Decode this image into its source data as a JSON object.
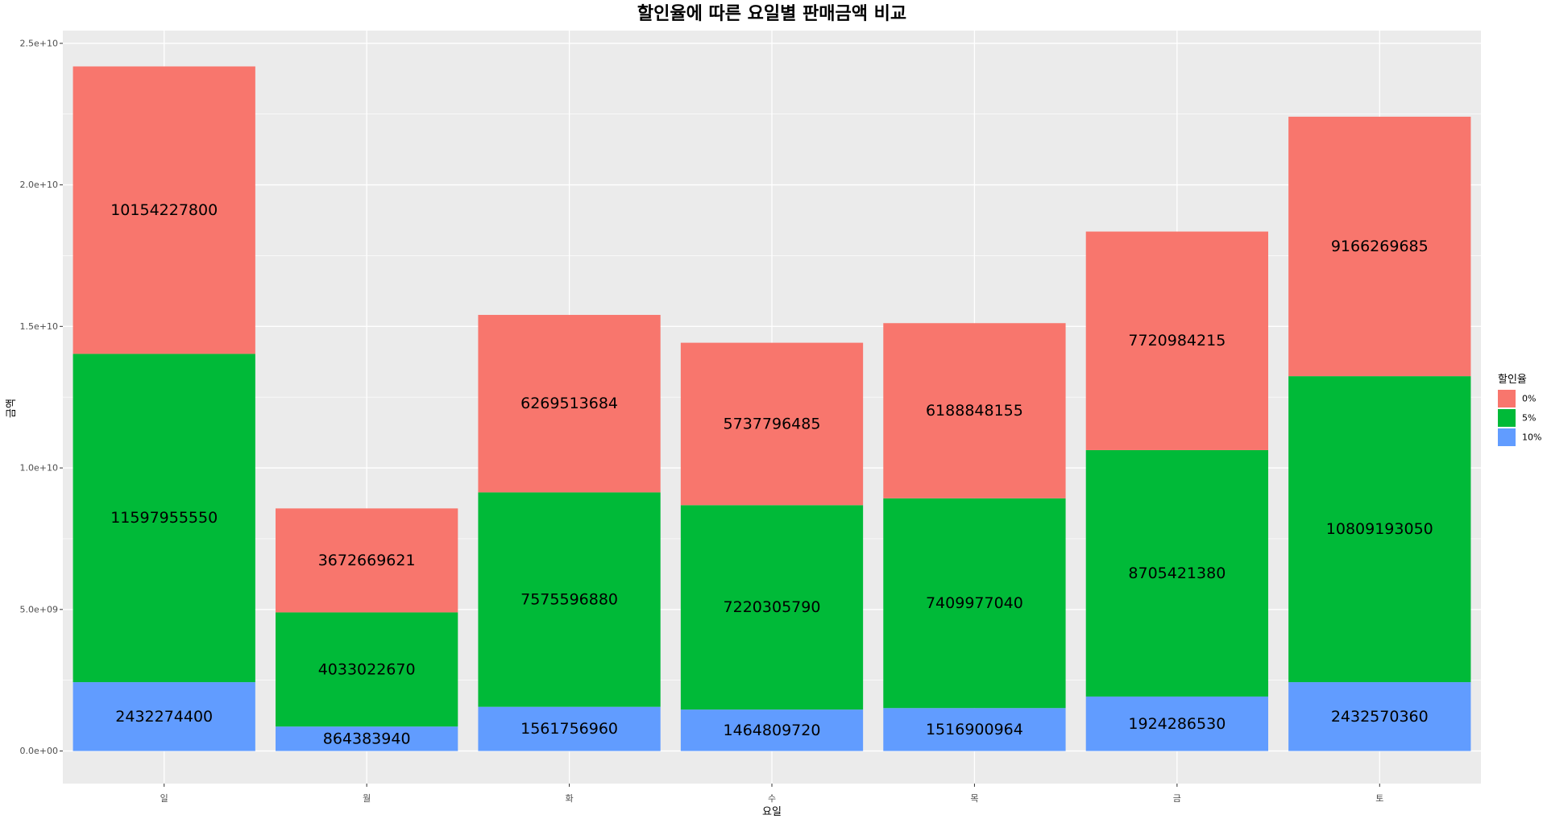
{
  "chart_data": {
    "type": "bar",
    "stacked": true,
    "title": "할인율에 따른 요일별 판매금액 비교",
    "xlabel": "요일",
    "ylabel": "금액",
    "categories": [
      "일",
      "월",
      "화",
      "수",
      "목",
      "금",
      "토"
    ],
    "series": [
      {
        "name": "10%",
        "color": "#619CFF",
        "values": [
          2432274400,
          864383940,
          1561756960,
          1464809720,
          1516900964,
          1924286530,
          2432570360
        ]
      },
      {
        "name": "5%",
        "color": "#00BA38",
        "values": [
          11597955550,
          4033022670,
          7575596880,
          7220305790,
          7409977040,
          8705421380,
          10809193050
        ]
      },
      {
        "name": "0%",
        "color": "#F8766D",
        "values": [
          10154227800,
          3672669621,
          6269513684,
          5737796485,
          6188848155,
          7720984215,
          9166269685
        ]
      }
    ],
    "ylim": [
      -1150000000,
      25450000000
    ],
    "y_ticks": [
      0,
      5000000000,
      10000000000,
      15000000000,
      20000000000,
      25000000000
    ],
    "y_tick_labels": [
      "0.0e+00",
      "5.0e+09",
      "1.0e+10",
      "1.5e+10",
      "2.0e+10",
      "2.5e+10"
    ],
    "legend": {
      "title": "할인율",
      "position": "right",
      "items": [
        {
          "label": "0%",
          "color": "#F8766D"
        },
        {
          "label": "5%",
          "color": "#00BA38"
        },
        {
          "label": "10%",
          "color": "#619CFF"
        }
      ]
    },
    "grid": true,
    "panel_background": "#EBEBEB"
  }
}
